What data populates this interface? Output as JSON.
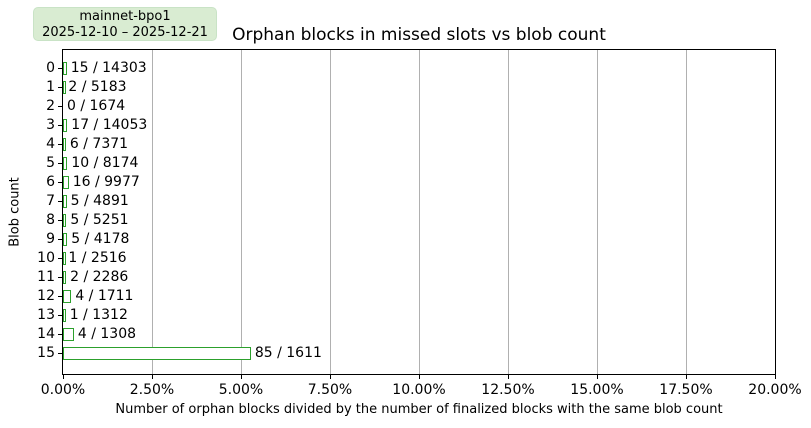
{
  "title": "Orphan blocks in missed slots vs blob count",
  "legend": {
    "line1": "mainnet-bpo1",
    "line2": "2025-12-10 – 2025-12-21",
    "background_color": "#d9ecd2"
  },
  "chart_data": {
    "type": "bar",
    "orientation": "horizontal",
    "title": "Orphan blocks in missed slots vs blob count",
    "xlabel": "Number of orphan blocks divided by the number of finalized blocks with the same blob count",
    "ylabel": "Blob count",
    "xlim": [
      0,
      20
    ],
    "xtick_values": [
      0,
      2.5,
      5,
      7.5,
      10,
      12.5,
      15,
      17.5,
      20
    ],
    "xtick_labels": [
      "0.00%",
      "2.50%",
      "5.00%",
      "7.50%",
      "10.00%",
      "12.50%",
      "15.00%",
      "17.50%",
      "20.00%"
    ],
    "categories": [
      "0",
      "1",
      "2",
      "3",
      "4",
      "5",
      "6",
      "7",
      "8",
      "9",
      "10",
      "11",
      "12",
      "13",
      "14",
      "15"
    ],
    "bars": [
      {
        "blob_count": "0",
        "orphans": 15,
        "finalized": 14303,
        "label": "15 / 14303"
      },
      {
        "blob_count": "1",
        "orphans": 2,
        "finalized": 5183,
        "label": "2 / 5183"
      },
      {
        "blob_count": "2",
        "orphans": 0,
        "finalized": 1674,
        "label": "0 / 1674"
      },
      {
        "blob_count": "3",
        "orphans": 17,
        "finalized": 14053,
        "label": "17 / 14053"
      },
      {
        "blob_count": "4",
        "orphans": 6,
        "finalized": 7371,
        "label": "6 / 7371"
      },
      {
        "blob_count": "5",
        "orphans": 10,
        "finalized": 8174,
        "label": "10 / 8174"
      },
      {
        "blob_count": "6",
        "orphans": 16,
        "finalized": 9977,
        "label": "16 / 9977"
      },
      {
        "blob_count": "7",
        "orphans": 5,
        "finalized": 4891,
        "label": "5 / 4891"
      },
      {
        "blob_count": "8",
        "orphans": 5,
        "finalized": 5251,
        "label": "5 / 5251"
      },
      {
        "blob_count": "9",
        "orphans": 5,
        "finalized": 4178,
        "label": "5 / 4178"
      },
      {
        "blob_count": "10",
        "orphans": 1,
        "finalized": 2516,
        "label": "1 / 2516"
      },
      {
        "blob_count": "11",
        "orphans": 2,
        "finalized": 2286,
        "label": "2 / 2286"
      },
      {
        "blob_count": "12",
        "orphans": 4,
        "finalized": 1711,
        "label": "4 / 1711"
      },
      {
        "blob_count": "13",
        "orphans": 1,
        "finalized": 1312,
        "label": "1 / 1312"
      },
      {
        "blob_count": "14",
        "orphans": 4,
        "finalized": 1308,
        "label": "4 / 1308"
      },
      {
        "blob_count": "15",
        "orphans": 85,
        "finalized": 1611,
        "label": "85 / 1611"
      }
    ],
    "grid": true,
    "legend_position": "top-left",
    "colors": {
      "bar_fill": "#ffffff",
      "bar_edge": "#2ca02c",
      "grid": "#b0b0b0",
      "spine": "#000000",
      "text": "#000000",
      "legend_bg": "#d9ecd2"
    }
  }
}
